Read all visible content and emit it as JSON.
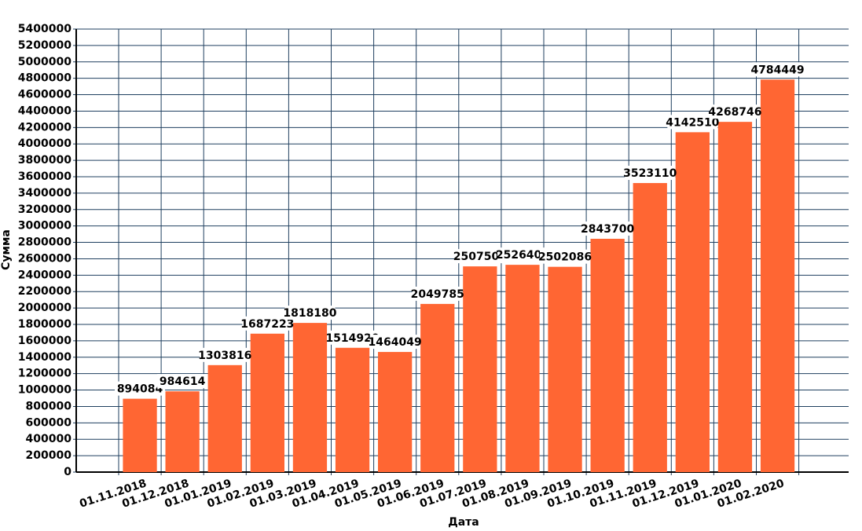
{
  "chart_data": {
    "type": "bar",
    "x_label": "Дата",
    "y_label": "Сумма",
    "categories": [
      "01.11.2018",
      "01.12.2018",
      "01.01.2019",
      "01.02.2019",
      "01.03.2019",
      "01.04.2019",
      "01.05.2019",
      "01.06.2019",
      "01.07.2019",
      "01.08.2019",
      "01.09.2019",
      "01.10.2019",
      "01.11.2019",
      "01.12.2019",
      "01.01.2020",
      "01.02.2020"
    ],
    "values": [
      894084,
      984614,
      1303816,
      1687223,
      1818180,
      1514920,
      1464049,
      2049785,
      2507500,
      2526400,
      2502086,
      2843700,
      3523110,
      4142510,
      4268746,
      4784449
    ],
    "color": "#ff6633",
    "ylim": [
      0,
      5400000
    ],
    "yticks": [
      0,
      200000,
      400000,
      600000,
      800000,
      1000000,
      1200000,
      1400000,
      1600000,
      1800000,
      2000000,
      2200000,
      2400000,
      2600000,
      2800000,
      3000000,
      3200000,
      3400000,
      3600000,
      3800000,
      4000000,
      4200000,
      4400000,
      4600000,
      4800000,
      5000000,
      5200000,
      5400000
    ],
    "grid": true
  }
}
